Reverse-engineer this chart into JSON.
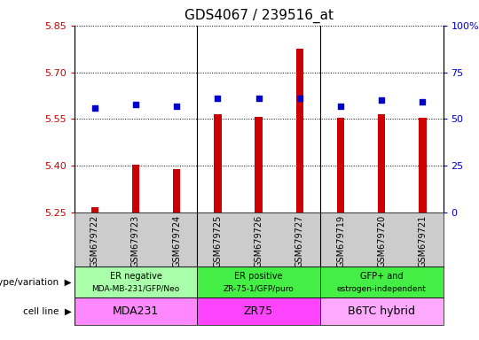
{
  "title": "GDS4067 / 239516_at",
  "samples": [
    "GSM679722",
    "GSM679723",
    "GSM679724",
    "GSM679725",
    "GSM679726",
    "GSM679727",
    "GSM679719",
    "GSM679720",
    "GSM679721"
  ],
  "transformed_counts": [
    5.268,
    5.403,
    5.388,
    5.565,
    5.558,
    5.775,
    5.555,
    5.565,
    5.555
  ],
  "percentile_ranks": [
    56,
    58,
    57,
    61,
    61,
    61,
    57,
    60,
    59
  ],
  "ylim_left": [
    5.25,
    5.85
  ],
  "ylim_right": [
    0,
    100
  ],
  "yticks_left": [
    5.25,
    5.4,
    5.55,
    5.7,
    5.85
  ],
  "yticks_right": [
    0,
    25,
    50,
    75,
    100
  ],
  "bar_color": "#cc0000",
  "dot_color": "#0000cc",
  "bar_bottom": 5.25,
  "groups": [
    {
      "label_line1": "ER negative",
      "label_line2": "MDA-MB-231/GFP/Neo",
      "cell_line": "MDA231",
      "start": 0,
      "end": 3,
      "geno_color": "#aaffaa",
      "cell_color": "#ff88ff"
    },
    {
      "label_line1": "ER positive",
      "label_line2": "ZR-75-1/GFP/puro",
      "cell_line": "ZR75",
      "start": 3,
      "end": 6,
      "geno_color": "#44ee44",
      "cell_color": "#ff44ff"
    },
    {
      "label_line1": "GFP+ and",
      "label_line2": "estrogen-independent",
      "cell_line": "B6TC hybrid",
      "start": 6,
      "end": 9,
      "geno_color": "#44ee44",
      "cell_color": "#ffaaff"
    }
  ],
  "left_label_color": "#cc0000",
  "right_label_color": "#0000cc",
  "tick_area_color": "#cccccc",
  "fig_width": 5.4,
  "fig_height": 3.84,
  "dpi": 100
}
